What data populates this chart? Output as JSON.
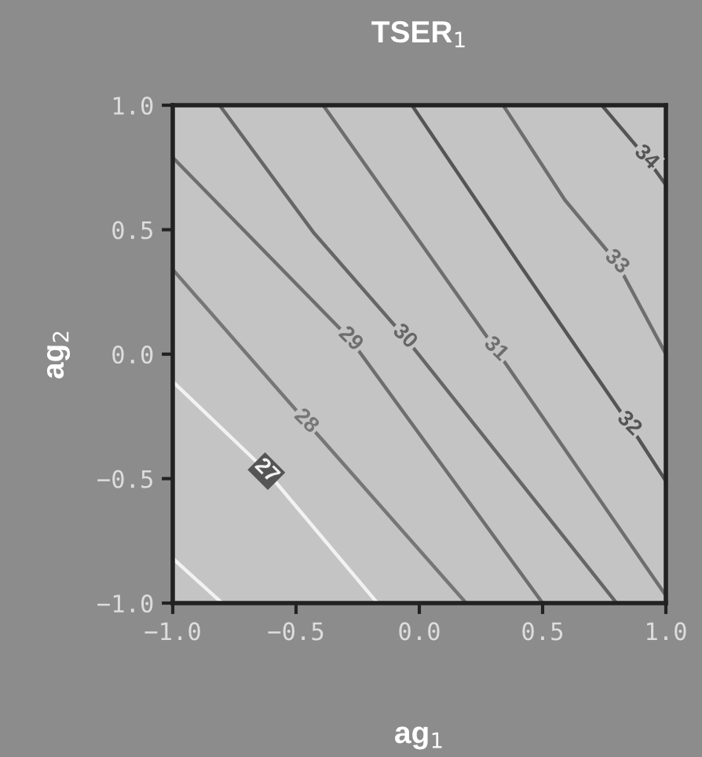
{
  "chart_data": {
    "type": "line",
    "title": "TSER$_{1}$",
    "xlabel": "ag$_{1}$",
    "ylabel": "ag$_{2}$",
    "xlim": [
      -1.0,
      1.0
    ],
    "ylim": [
      -1.0,
      1.0
    ],
    "xticks": [
      {
        "value": -1.0,
        "label": "−1.0"
      },
      {
        "value": -0.5,
        "label": "−0.5"
      },
      {
        "value": 0.0,
        "label": "0.0"
      },
      {
        "value": 0.5,
        "label": "0.5"
      },
      {
        "value": 1.0,
        "label": "1.0"
      }
    ],
    "yticks": [
      {
        "value": -1.0,
        "label": "−1.0"
      },
      {
        "value": -0.5,
        "label": "−0.5"
      },
      {
        "value": 0.0,
        "label": "0.0"
      },
      {
        "value": 0.5,
        "label": "0.5"
      },
      {
        "value": 1.0,
        "label": "1.0"
      }
    ],
    "grid": false,
    "legend": false,
    "marker": "none",
    "line_style": "solid",
    "series": [
      {
        "color": "#f2f2f2",
        "x": [
          -1.0,
          -0.8
        ],
        "values": [
          -0.82,
          -1.0
        ]
      },
      {
        "name": "27",
        "color": "#f2f2f2",
        "x": [
          -1.0,
          -0.62,
          -0.17
        ],
        "values": [
          -0.11,
          -0.47,
          -1.0
        ]
      },
      {
        "name": "28",
        "color": "#767676",
        "x": [
          -1.0,
          -0.46,
          0.19
        ],
        "values": [
          0.34,
          -0.27,
          -1.0
        ]
      },
      {
        "name": "29",
        "color": "#6e6e6e",
        "x": [
          -1.0,
          -0.28,
          0.5
        ],
        "values": [
          0.79,
          0.06,
          -1.0
        ]
      },
      {
        "name": "30",
        "color": "#666666",
        "x": [
          -0.81,
          -0.43,
          -0.06,
          0.8
        ],
        "values": [
          1.0,
          0.49,
          0.07,
          -1.0
        ]
      },
      {
        "name": "31",
        "color": "#6e6e6e",
        "x": [
          -0.39,
          -0.04,
          0.31,
          1.0
        ],
        "values": [
          1.0,
          0.51,
          0.02,
          -0.97
        ]
      },
      {
        "name": "32",
        "color": "#555555",
        "x": [
          -0.03,
          0.4,
          0.85,
          1.0
        ],
        "values": [
          1.0,
          0.37,
          -0.28,
          -0.51
        ]
      },
      {
        "name": "33",
        "color": "#6e6e6e",
        "x": [
          0.34,
          0.59,
          0.8,
          1.0
        ],
        "values": [
          1.0,
          0.62,
          0.37,
          0.0
        ]
      },
      {
        "name": "34",
        "color": "#555555",
        "x": [
          0.74,
          0.92,
          1.0
        ],
        "values": [
          1.0,
          0.79,
          0.68
        ]
      }
    ]
  }
}
